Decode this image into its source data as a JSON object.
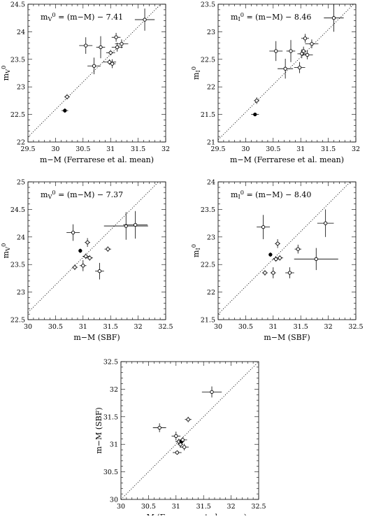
{
  "chart_data": [
    {
      "type": "scatter",
      "annotation_main": "m",
      "annotation_sub": "V",
      "annotation_sup": "0",
      "annotation_rest": " = (m−M) − 7.41",
      "xlabel": "m−M (Ferrarese et al. mean)",
      "ylabel_main": "m",
      "ylabel_sub": "V",
      "ylabel_sup": "0",
      "xlim": [
        29.5,
        32
      ],
      "ylim": [
        22,
        24.5
      ],
      "xticks": [
        "29.5",
        "30",
        "30.5",
        "31",
        "31.5",
        "32"
      ],
      "yticks": [
        "22",
        "22.5",
        "23",
        "23.5",
        "24",
        "24.5"
      ],
      "relation": {
        "slope": 1,
        "intercept": -7.41
      },
      "points": [
        {
          "x": 30.21,
          "y": 22.82,
          "xerr": 0.05,
          "yerr": 0.05,
          "filled": false
        },
        {
          "x": 30.17,
          "y": 22.57,
          "xerr": 0.06,
          "yerr": 0.04,
          "filled": true
        },
        {
          "x": 30.55,
          "y": 23.75,
          "xerr": 0.12,
          "yerr": 0.15,
          "filled": false
        },
        {
          "x": 30.7,
          "y": 23.38,
          "xerr": 0.12,
          "yerr": 0.15,
          "filled": false
        },
        {
          "x": 30.82,
          "y": 23.72,
          "xerr": 0.08,
          "yerr": 0.2,
          "filled": false
        },
        {
          "x": 30.98,
          "y": 23.45,
          "xerr": 0.12,
          "yerr": 0.05,
          "filled": false
        },
        {
          "x": 31.0,
          "y": 23.62,
          "xerr": 0.08,
          "yerr": 0.05,
          "filled": false
        },
        {
          "x": 31.03,
          "y": 23.42,
          "xerr": 0.06,
          "yerr": 0.08,
          "filled": false
        },
        {
          "x": 31.1,
          "y": 23.9,
          "xerr": 0.08,
          "yerr": 0.08,
          "filled": false
        },
        {
          "x": 31.12,
          "y": 23.72,
          "xerr": 0.1,
          "yerr": 0.08,
          "filled": false
        },
        {
          "x": 31.2,
          "y": 23.78,
          "xerr": 0.12,
          "yerr": 0.08,
          "filled": false
        },
        {
          "x": 31.62,
          "y": 24.22,
          "xerr": 0.18,
          "yerr": 0.2,
          "filled": false
        }
      ]
    },
    {
      "type": "scatter",
      "annotation_main": "m",
      "annotation_sub": "I",
      "annotation_sup": "0",
      "annotation_rest": " = (m−M) − 8.46",
      "xlabel": "m−M (Ferrarese et al. mean)",
      "ylabel_main": "m",
      "ylabel_sub": "I",
      "ylabel_sup": "0",
      "xlim": [
        29.5,
        32
      ],
      "ylim": [
        21,
        23.5
      ],
      "xticks": [
        "29.5",
        "30",
        "30.5",
        "31",
        "31.5",
        "32"
      ],
      "yticks": [
        "21",
        "21.5",
        "22",
        "22.5",
        "23",
        "23.5"
      ],
      "relation": {
        "slope": 1,
        "intercept": -8.46
      },
      "points": [
        {
          "x": 30.2,
          "y": 21.75,
          "xerr": 0.05,
          "yerr": 0.06,
          "filled": false
        },
        {
          "x": 30.17,
          "y": 21.5,
          "xerr": 0.07,
          "yerr": 0.03,
          "filled": true
        },
        {
          "x": 30.55,
          "y": 22.65,
          "xerr": 0.12,
          "yerr": 0.18,
          "filled": false
        },
        {
          "x": 30.72,
          "y": 22.33,
          "xerr": 0.14,
          "yerr": 0.18,
          "filled": false
        },
        {
          "x": 30.82,
          "y": 22.65,
          "xerr": 0.08,
          "yerr": 0.2,
          "filled": false
        },
        {
          "x": 30.98,
          "y": 22.35,
          "xerr": 0.1,
          "yerr": 0.1,
          "filled": false
        },
        {
          "x": 31.02,
          "y": 22.6,
          "xerr": 0.08,
          "yerr": 0.08,
          "filled": false
        },
        {
          "x": 31.05,
          "y": 22.65,
          "xerr": 0.05,
          "yerr": 0.08,
          "filled": false
        },
        {
          "x": 31.08,
          "y": 22.88,
          "xerr": 0.07,
          "yerr": 0.08,
          "filled": false
        },
        {
          "x": 31.12,
          "y": 22.58,
          "xerr": 0.1,
          "yerr": 0.08,
          "filled": false
        },
        {
          "x": 31.2,
          "y": 22.78,
          "xerr": 0.12,
          "yerr": 0.08,
          "filled": false
        },
        {
          "x": 31.6,
          "y": 23.25,
          "xerr": 0.18,
          "yerr": 0.25,
          "filled": false
        }
      ]
    },
    {
      "type": "scatter",
      "annotation_main": "m",
      "annotation_sub": "V",
      "annotation_sup": "0",
      "annotation_rest": " = (m−M) − 7.37",
      "xlabel": "m−M (SBF)",
      "ylabel_main": "m",
      "ylabel_sub": "V",
      "ylabel_sup": "0",
      "xlim": [
        30,
        32.5
      ],
      "ylim": [
        22.5,
        25
      ],
      "xticks": [
        "30",
        "30.5",
        "31",
        "31.5",
        "32",
        "32.5"
      ],
      "yticks": [
        "22.5",
        "23",
        "23.5",
        "24",
        "24.5",
        "25"
      ],
      "relation": {
        "slope": 1,
        "intercept": -7.37
      },
      "points": [
        {
          "x": 30.82,
          "y": 24.08,
          "xerr": 0.12,
          "yerr": 0.15,
          "filled": false
        },
        {
          "x": 30.85,
          "y": 23.45,
          "xerr": 0.05,
          "yerr": 0.05,
          "filled": false
        },
        {
          "x": 30.95,
          "y": 23.75,
          "xerr": 0.03,
          "yerr": 0.04,
          "filled": true
        },
        {
          "x": 31.0,
          "y": 23.48,
          "xerr": 0.06,
          "yerr": 0.1,
          "filled": false
        },
        {
          "x": 31.05,
          "y": 23.65,
          "xerr": 0.06,
          "yerr": 0.05,
          "filled": false
        },
        {
          "x": 31.08,
          "y": 23.9,
          "xerr": 0.05,
          "yerr": 0.08,
          "filled": false
        },
        {
          "x": 31.12,
          "y": 23.62,
          "xerr": 0.06,
          "yerr": 0.05,
          "filled": false
        },
        {
          "x": 31.3,
          "y": 23.38,
          "xerr": 0.08,
          "yerr": 0.15,
          "filled": false
        },
        {
          "x": 31.45,
          "y": 23.78,
          "xerr": 0.06,
          "yerr": 0.05,
          "filled": false
        },
        {
          "x": 31.78,
          "y": 24.2,
          "xerr": 0.4,
          "yerr": 0.25,
          "filled": false
        },
        {
          "x": 31.95,
          "y": 24.22,
          "xerr": 0.22,
          "yerr": 0.25,
          "filled": false
        }
      ]
    },
    {
      "type": "scatter",
      "annotation_main": "m",
      "annotation_sub": "I",
      "annotation_sup": "0",
      "annotation_rest": " = (m−M) − 8.40",
      "xlabel": "m−M (SBF)",
      "ylabel_main": "m",
      "ylabel_sub": "I",
      "ylabel_sup": "0",
      "xlim": [
        30,
        32.5
      ],
      "ylim": [
        21.5,
        24
      ],
      "xticks": [
        "30",
        "30.5",
        "31",
        "31.5",
        "32",
        "32.5"
      ],
      "yticks": [
        "21.5",
        "22",
        "22.5",
        "23",
        "23.5",
        "24"
      ],
      "relation": {
        "slope": 1,
        "intercept": -8.4
      },
      "points": [
        {
          "x": 30.82,
          "y": 23.18,
          "xerr": 0.12,
          "yerr": 0.22,
          "filled": false
        },
        {
          "x": 30.85,
          "y": 22.35,
          "xerr": 0.05,
          "yerr": 0.05,
          "filled": false
        },
        {
          "x": 30.95,
          "y": 22.68,
          "xerr": 0.03,
          "yerr": 0.04,
          "filled": true
        },
        {
          "x": 31.0,
          "y": 22.35,
          "xerr": 0.05,
          "yerr": 0.1,
          "filled": false
        },
        {
          "x": 31.05,
          "y": 22.6,
          "xerr": 0.06,
          "yerr": 0.05,
          "filled": false
        },
        {
          "x": 31.08,
          "y": 22.88,
          "xerr": 0.05,
          "yerr": 0.08,
          "filled": false
        },
        {
          "x": 31.12,
          "y": 22.62,
          "xerr": 0.06,
          "yerr": 0.05,
          "filled": false
        },
        {
          "x": 31.3,
          "y": 22.35,
          "xerr": 0.08,
          "yerr": 0.1,
          "filled": false
        },
        {
          "x": 31.45,
          "y": 22.78,
          "xerr": 0.06,
          "yerr": 0.08,
          "filled": false
        },
        {
          "x": 31.78,
          "y": 22.6,
          "xerr": 0.4,
          "yerr": 0.2,
          "filled": false
        },
        {
          "x": 31.95,
          "y": 23.25,
          "xerr": 0.15,
          "yerr": 0.25,
          "filled": false
        }
      ]
    },
    {
      "type": "scatter",
      "xlabel": "m−M (Ferrarese et al. mean)",
      "ylabel_main": "m−M (SBF)",
      "xlim": [
        30,
        32.5
      ],
      "ylim": [
        30,
        32.5
      ],
      "xticks": [
        "30",
        "30.5",
        "31",
        "31.5",
        "32",
        "32.5"
      ],
      "yticks": [
        "30",
        "30.5",
        "31",
        "31.5",
        "32",
        "32.5"
      ],
      "relation": {
        "slope": 1,
        "intercept": 0
      },
      "points": [
        {
          "x": 30.7,
          "y": 31.3,
          "xerr": 0.12,
          "yerr": 0.08,
          "filled": false
        },
        {
          "x": 31.0,
          "y": 31.15,
          "xerr": 0.08,
          "yerr": 0.08,
          "filled": false
        },
        {
          "x": 31.02,
          "y": 30.85,
          "xerr": 0.08,
          "yerr": 0.04,
          "filled": false
        },
        {
          "x": 31.05,
          "y": 31.05,
          "xerr": 0.06,
          "yerr": 0.05,
          "filled": false
        },
        {
          "x": 31.08,
          "y": 31.0,
          "xerr": 0.05,
          "yerr": 0.06,
          "filled": false
        },
        {
          "x": 31.1,
          "y": 31.05,
          "xerr": 0.05,
          "yerr": 0.04,
          "filled": true
        },
        {
          "x": 31.12,
          "y": 31.08,
          "xerr": 0.08,
          "yerr": 0.05,
          "filled": false
        },
        {
          "x": 31.15,
          "y": 30.95,
          "xerr": 0.08,
          "yerr": 0.06,
          "filled": false
        },
        {
          "x": 31.22,
          "y": 31.45,
          "xerr": 0.06,
          "yerr": 0.05,
          "filled": false
        },
        {
          "x": 31.65,
          "y": 31.95,
          "xerr": 0.18,
          "yerr": 0.1,
          "filled": false
        }
      ]
    }
  ]
}
